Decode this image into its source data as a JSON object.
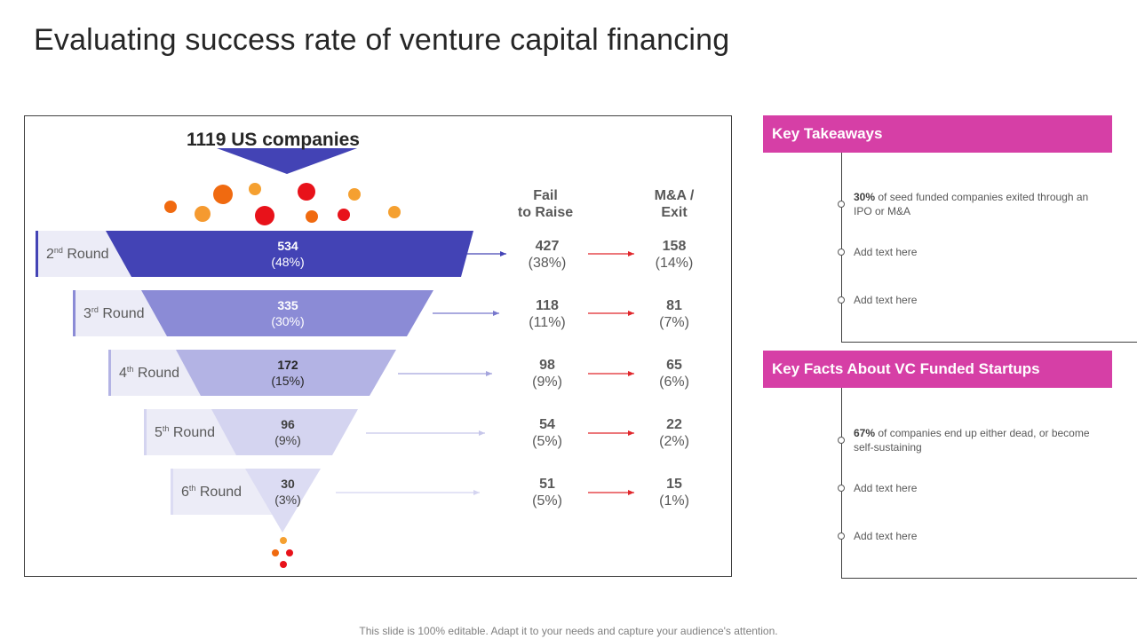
{
  "title": "Evaluating success rate of venture capital financing",
  "funnel": {
    "header": "1119 US companies",
    "col_fail": [
      "Fail",
      "to Raise"
    ],
    "col_exit": [
      "M&A /",
      "Exit"
    ],
    "rounds": [
      {
        "ordinal": "2",
        "suffix": "nd",
        "label": " Round",
        "raised": "534",
        "raised_pct": "(48%)",
        "fail": "427",
        "fail_pct": "(38%)",
        "exit": "158",
        "exit_pct": "(14%)",
        "fill": "#4343b5",
        "val_color": "#ffffff",
        "arrow_color": "#4343b5"
      },
      {
        "ordinal": "3",
        "suffix": "rd",
        "label": " Round",
        "raised": "335",
        "raised_pct": "(30%)",
        "fail": "118",
        "fail_pct": "(11%)",
        "exit": "81",
        "exit_pct": "(7%)",
        "fill": "#8b8bd6",
        "val_color": "#ffffff",
        "arrow_color": "#7777cc"
      },
      {
        "ordinal": "4",
        "suffix": "th",
        "label": " Round",
        "raised": "172",
        "raised_pct": "(15%)",
        "fail": "98",
        "fail_pct": "(9%)",
        "exit": "65",
        "exit_pct": "(6%)",
        "fill": "#b3b3e4",
        "val_color": "#262626",
        "arrow_color": "#a5a5dd"
      },
      {
        "ordinal": "5",
        "suffix": "th",
        "label": " Round",
        "raised": "96",
        "raised_pct": "(9%)",
        "fail": "54",
        "fail_pct": "(5%)",
        "exit": "22",
        "exit_pct": "(2%)",
        "fill": "#d4d4f0",
        "val_color": "#404040",
        "arrow_color": "#c6c6ea"
      },
      {
        "ordinal": "6",
        "suffix": "th",
        "label": " Round",
        "raised": "30",
        "raised_pct": "(3%)",
        "fail": "51",
        "fail_pct": "(5%)",
        "exit": "15",
        "exit_pct": "(1%)",
        "fill": "#dcdcf3",
        "val_color": "#404040",
        "arrow_color": "#d4d4f0"
      }
    ]
  },
  "takeaways": {
    "title": "Key Takeaways",
    "items": [
      {
        "bold": "30%",
        "text": " of seed funded companies exited through an IPO or M&A"
      },
      {
        "bold": "",
        "text": "Add text here"
      },
      {
        "bold": "",
        "text": "Add text here"
      }
    ]
  },
  "facts": {
    "title": "Key Facts About VC Funded Startups",
    "items": [
      {
        "bold": "67%",
        "text": " of companies end up either dead, or become self-sustaining"
      },
      {
        "bold": "",
        "text": "Add text here"
      },
      {
        "bold": "",
        "text": "Add text here"
      }
    ]
  },
  "colors": {
    "accent": "#d63fa6",
    "arrow_red": "#e0262b",
    "funnel_top": "#4343b5"
  },
  "footer": "This slide is 100% editable. Adapt it to your needs and capture your audience's attention."
}
